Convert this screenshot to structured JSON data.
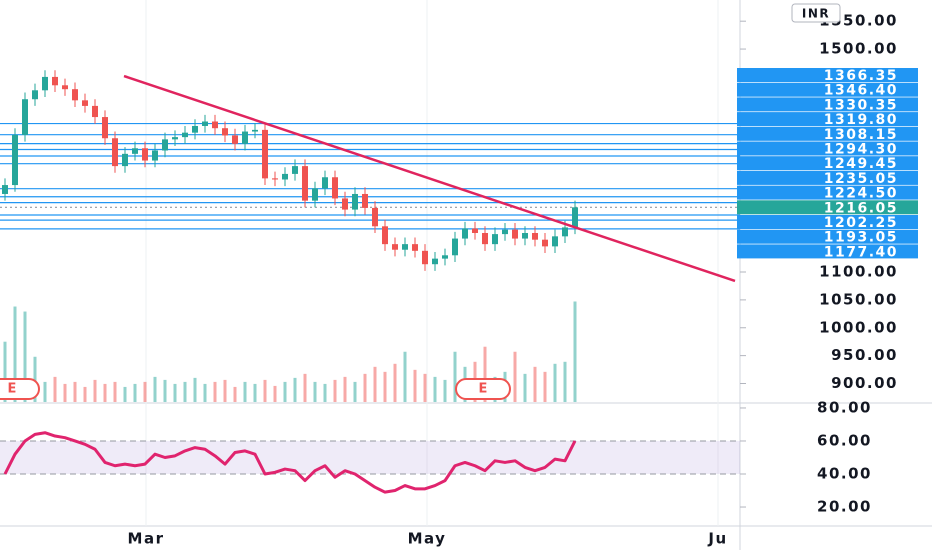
{
  "chart_data": {
    "type": "candlestick",
    "currency": "INR",
    "xlim": [
      -0.5,
      73.5
    ],
    "xticks": [
      {
        "value": 14.1,
        "label": "Mar"
      },
      {
        "value": 42.2,
        "label": "May"
      },
      {
        "value": 71.3,
        "label": "Ju"
      }
    ],
    "ylim": [
      866.8,
      1588
    ],
    "yticks": [
      {
        "value": 900,
        "label": "900.00"
      },
      {
        "value": 950,
        "label": "950.00"
      },
      {
        "value": 1000,
        "label": "1000.00"
      },
      {
        "value": 1050,
        "label": "1050.00"
      },
      {
        "value": 1100,
        "label": "1100.00"
      },
      {
        "value": 1500,
        "label": "1500.00"
      },
      {
        "value": 1550,
        "label": "1550.00"
      }
    ],
    "up_color": "#26a69a",
    "down_color": "#ef5350",
    "open": [
      1240,
      1256,
      1346,
      1410,
      1426,
      1450,
      1435,
      1428,
      1408,
      1398,
      1378,
      1340,
      1290,
      1312,
      1322,
      1300,
      1318,
      1338,
      1342,
      1350,
      1362,
      1370,
      1358,
      1345,
      1330,
      1352,
      1355,
      1268,
      1266,
      1276,
      1290,
      1228,
      1250,
      1270,
      1232,
      1212,
      1240,
      1215,
      1182,
      1150,
      1140,
      1150,
      1138,
      1114,
      1124,
      1130,
      1160,
      1178,
      1170,
      1150,
      1168,
      1176,
      1160,
      1170,
      1158,
      1146,
      1164,
      1180
    ],
    "high": [
      1268,
      1358,
      1422,
      1438,
      1462,
      1462,
      1447,
      1440,
      1420,
      1410,
      1390,
      1352,
      1324,
      1334,
      1334,
      1330,
      1350,
      1354,
      1362,
      1374,
      1382,
      1382,
      1370,
      1357,
      1364,
      1367,
      1367,
      1280,
      1288,
      1302,
      1302,
      1262,
      1282,
      1282,
      1244,
      1252,
      1252,
      1227,
      1194,
      1162,
      1162,
      1162,
      1150,
      1136,
      1142,
      1172,
      1190,
      1190,
      1182,
      1180,
      1188,
      1188,
      1182,
      1182,
      1170,
      1176,
      1192,
      1228
    ],
    "low": [
      1228,
      1244,
      1334,
      1398,
      1414,
      1423,
      1416,
      1396,
      1386,
      1366,
      1328,
      1278,
      1278,
      1300,
      1288,
      1288,
      1306,
      1326,
      1330,
      1338,
      1350,
      1346,
      1333,
      1318,
      1318,
      1340,
      1256,
      1254,
      1254,
      1264,
      1216,
      1216,
      1238,
      1220,
      1200,
      1200,
      1203,
      1170,
      1138,
      1128,
      1128,
      1126,
      1102,
      1102,
      1112,
      1118,
      1148,
      1158,
      1138,
      1138,
      1156,
      1148,
      1148,
      1146,
      1134,
      1134,
      1152,
      1168
    ],
    "close": [
      1256,
      1346,
      1410,
      1426,
      1450,
      1435,
      1428,
      1408,
      1398,
      1378,
      1340,
      1290,
      1312,
      1322,
      1300,
      1318,
      1338,
      1342,
      1350,
      1362,
      1370,
      1358,
      1345,
      1330,
      1352,
      1355,
      1268,
      1266,
      1276,
      1290,
      1228,
      1250,
      1270,
      1232,
      1212,
      1240,
      1215,
      1182,
      1150,
      1140,
      1150,
      1138,
      1114,
      1124,
      1130,
      1160,
      1178,
      1170,
      1150,
      1168,
      1176,
      1160,
      1170,
      1158,
      1146,
      1164,
      1180,
      1216.05
    ],
    "volume_ylim": [
      0,
      400
    ],
    "volume": [
      60,
      95,
      90,
      45,
      20,
      25,
      18,
      20,
      15,
      22,
      18,
      20,
      15,
      18,
      20,
      25,
      22,
      18,
      20,
      24,
      18,
      20,
      22,
      15,
      20,
      18,
      22,
      16,
      20,
      24,
      28,
      20,
      18,
      22,
      25,
      20,
      28,
      35,
      30,
      38,
      50,
      32,
      28,
      25,
      22,
      50,
      35,
      40,
      55,
      25,
      30,
      50,
      28,
      35,
      30,
      38,
      40,
      100
    ],
    "levels": {
      "values": [
        1366.35,
        1346.4,
        1330.35,
        1319.8,
        1308.15,
        1294.3,
        1249.45,
        1235.05,
        1224.5,
        1216.05,
        1202.25,
        1193.05,
        1177.4
      ],
      "value_labels": [
        "1366.35",
        "1346.40",
        "1330.35",
        "1319.80",
        "1308.15",
        "1294.30",
        "1249.45",
        "1235.05",
        "1224.50",
        "1216.05",
        "1202.25",
        "1193.05",
        "1177.40"
      ],
      "colors": [
        "#2196f3",
        "#2196f3",
        "#2196f3",
        "#2196f3",
        "#2196f3",
        "#2196f3",
        "#2196f3",
        "#2196f3",
        "#2196f3",
        "#26a69a",
        "#2196f3",
        "#2196f3",
        "#2196f3"
      ]
    },
    "trendline": {
      "x": [
        11.9,
        73
      ],
      "y": [
        1451.6,
        1083.9
      ],
      "color": "#e0245e"
    },
    "events": [
      {
        "label": "E",
        "x": 0.7
      },
      {
        "label": "E",
        "x": 47.8
      }
    ],
    "rsi": {
      "ylim": [
        7.9,
        82.4
      ],
      "yticks": [
        {
          "value": 20,
          "label": "20.00"
        },
        {
          "value": 40,
          "label": "40.00"
        },
        {
          "value": 60,
          "label": "60.00"
        },
        {
          "value": 80,
          "label": "80.00"
        }
      ],
      "band": [
        40,
        60
      ],
      "color": "#e0246e",
      "values": [
        40,
        52,
        60,
        64,
        65,
        63,
        62,
        60,
        58,
        55,
        47,
        45,
        46,
        45,
        46,
        52,
        50,
        51,
        54,
        56,
        55,
        51,
        46,
        53,
        54,
        52,
        40,
        41,
        43,
        42,
        36,
        42,
        45,
        38,
        42,
        40,
        36,
        32,
        29,
        30,
        33,
        31,
        31,
        33,
        36,
        45,
        47,
        45,
        42,
        48,
        47,
        48,
        44,
        42,
        44,
        49,
        48,
        60
      ]
    }
  }
}
